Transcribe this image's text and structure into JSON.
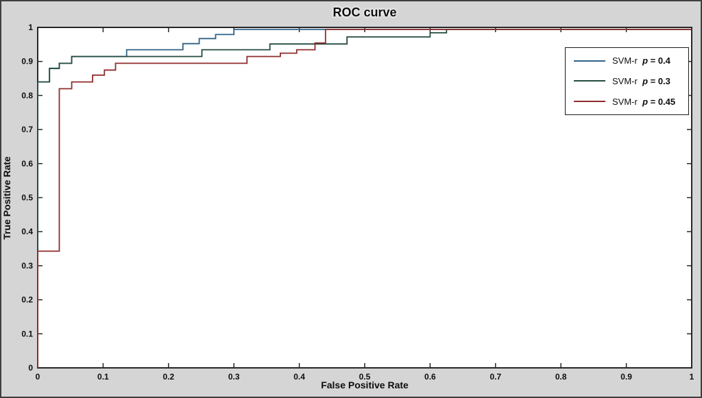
{
  "window": {
    "background_color": "#d5d5d5",
    "plot_background_color": "#ffffff",
    "frame_color": "#3f3f3f",
    "axis_color": "#262626"
  },
  "chart_data": {
    "type": "line",
    "subtype": "roc-step-curves",
    "title": "ROC curve",
    "xlabel": "False Positive Rate",
    "ylabel": "True Positive Rate",
    "xlim": [
      0,
      1
    ],
    "ylim": [
      0,
      1
    ],
    "grid": false,
    "legend_position": "top-right",
    "x_ticks": [
      0,
      0.1,
      0.2,
      0.3,
      0.4,
      0.5,
      0.6,
      0.7,
      0.8,
      0.9,
      1
    ],
    "x_tick_labels": [
      "0",
      "0.1",
      "0.2",
      "0.3",
      "0.4",
      "0.5",
      "0.6",
      "0.7",
      "0.8",
      "0.9",
      "1"
    ],
    "y_ticks": [
      0,
      0.1,
      0.2,
      0.3,
      0.4,
      0.5,
      0.6,
      0.7,
      0.8,
      0.9,
      1
    ],
    "y_tick_labels": [
      "0",
      "0.1",
      "0.2",
      "0.3",
      "0.4",
      "0.5",
      "0.6",
      "0.7",
      "0.8",
      "0.9",
      "1"
    ],
    "series": [
      {
        "name": "SVM-r p = 0.4",
        "color": "#2f6288",
        "x": [
          0,
          0,
          0.018,
          0.018,
          0.033,
          0.033,
          0.052,
          0.052,
          0.136,
          0.136,
          0.222,
          0.222,
          0.247,
          0.247,
          0.272,
          0.272,
          0.3,
          0.3,
          1.0
        ],
        "y": [
          0,
          0.845,
          0.845,
          0.885,
          0.885,
          0.9,
          0.9,
          0.92,
          0.92,
          0.94,
          0.94,
          0.958,
          0.958,
          0.973,
          0.973,
          0.985,
          0.985,
          1.0,
          1.0
        ]
      },
      {
        "name": "SVM-r p = 0.3",
        "color": "#234a40",
        "x": [
          0,
          0,
          0.018,
          0.018,
          0.033,
          0.033,
          0.052,
          0.052,
          0.251,
          0.251,
          0.355,
          0.355,
          0.473,
          0.473,
          0.6,
          0.6,
          0.625,
          0.625,
          1.0
        ],
        "y": [
          0,
          0.845,
          0.845,
          0.885,
          0.885,
          0.9,
          0.9,
          0.92,
          0.92,
          0.94,
          0.94,
          0.957,
          0.957,
          0.978,
          0.978,
          0.99,
          0.99,
          1.0,
          1.0
        ]
      },
      {
        "name": "SVM-r p = 0.45",
        "color": "#8f2b2b",
        "x": [
          0,
          0,
          0.033,
          0.033,
          0.052,
          0.052,
          0.084,
          0.084,
          0.102,
          0.102,
          0.119,
          0.119,
          0.32,
          0.32,
          0.371,
          0.371,
          0.396,
          0.396,
          0.424,
          0.424,
          0.44,
          0.44,
          1.0
        ],
        "y": [
          0,
          0.345,
          0.345,
          0.825,
          0.825,
          0.845,
          0.845,
          0.865,
          0.865,
          0.88,
          0.88,
          0.9,
          0.9,
          0.92,
          0.92,
          0.93,
          0.93,
          0.94,
          0.94,
          0.96,
          0.96,
          1.0,
          1.0
        ]
      }
    ]
  },
  "legend": {
    "items": [
      {
        "prefix": "SVM-r  ",
        "symbol": "p",
        "value": " = 0.4"
      },
      {
        "prefix": "SVM-r  ",
        "symbol": "p",
        "value": " = 0.3"
      },
      {
        "prefix": "SVM-r  ",
        "symbol": "p",
        "value": " = 0.45"
      }
    ]
  }
}
